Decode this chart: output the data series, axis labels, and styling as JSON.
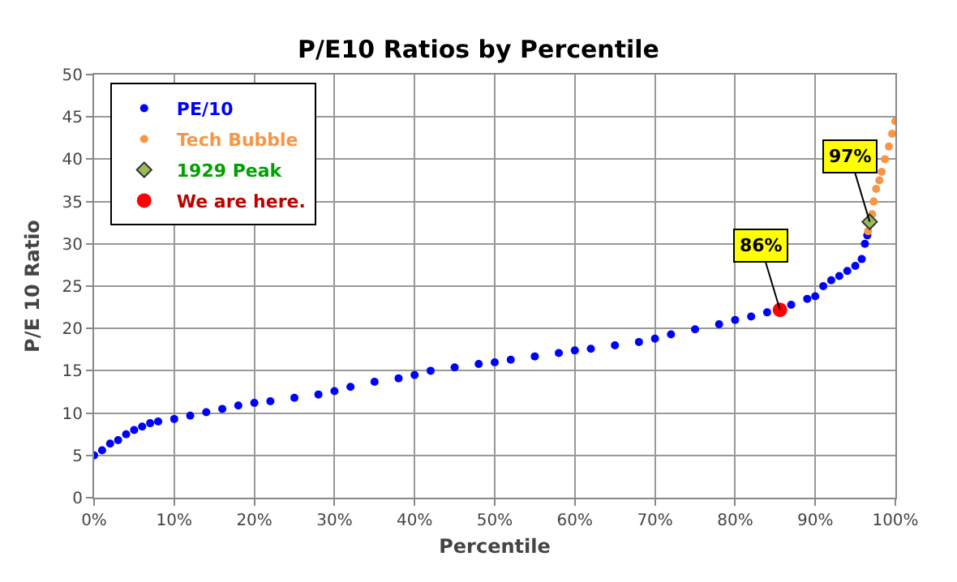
{
  "chart_data": {
    "type": "scatter",
    "title": "P/E10 Ratios by Percentile",
    "xlabel": "Percentile",
    "ylabel": "P/E 10 Ratio",
    "xlim": [
      0,
      100
    ],
    "ylim": [
      0,
      50
    ],
    "xticks": [
      {
        "value": 0,
        "label": "0%"
      },
      {
        "value": 10,
        "label": "10%"
      },
      {
        "value": 20,
        "label": "20%"
      },
      {
        "value": 30,
        "label": "30%"
      },
      {
        "value": 40,
        "label": "40%"
      },
      {
        "value": 50,
        "label": "50%"
      },
      {
        "value": 60,
        "label": "60%"
      },
      {
        "value": 70,
        "label": "70%"
      },
      {
        "value": 80,
        "label": "80%"
      },
      {
        "value": 90,
        "label": "90%"
      },
      {
        "value": 100,
        "label": "100%"
      }
    ],
    "yticks": [
      0,
      5,
      10,
      15,
      20,
      25,
      30,
      35,
      40,
      45,
      50
    ],
    "grid": true,
    "legend": "top left",
    "marker": "circle",
    "series": [
      {
        "name": "PE/10",
        "color": "#0000ff",
        "x": [
          0,
          1,
          2,
          3,
          4,
          5,
          6,
          7,
          8,
          10,
          12,
          14,
          16,
          18,
          20,
          22,
          25,
          28,
          30,
          32,
          35,
          38,
          40,
          42,
          45,
          48,
          50,
          52,
          55,
          58,
          60,
          62,
          65,
          68,
          70,
          72,
          75,
          78,
          80,
          82,
          84,
          87,
          89,
          90,
          91,
          92,
          93,
          94,
          95,
          95.8,
          96.2,
          96.5
        ],
        "values": [
          5.0,
          5.6,
          6.4,
          6.8,
          7.5,
          8.0,
          8.4,
          8.8,
          9.0,
          9.3,
          9.7,
          10.1,
          10.5,
          10.9,
          11.2,
          11.4,
          11.8,
          12.2,
          12.6,
          13.1,
          13.7,
          14.1,
          14.5,
          15.0,
          15.4,
          15.8,
          16.0,
          16.3,
          16.7,
          17.1,
          17.4,
          17.6,
          18.0,
          18.4,
          18.8,
          19.3,
          19.9,
          20.5,
          21.0,
          21.4,
          21.9,
          22.8,
          23.5,
          23.8,
          25.0,
          25.7,
          26.2,
          26.8,
          27.4,
          28.2,
          30.0,
          31.0
        ]
      },
      {
        "name": "Tech Bubble",
        "color": "#f79646",
        "x": [
          96.6,
          97.1,
          97.3,
          97.6,
          98.0,
          98.3,
          98.7,
          99.2,
          99.6,
          100
        ],
        "values": [
          31.5,
          33.5,
          35.0,
          36.5,
          37.5,
          38.5,
          40.0,
          41.5,
          43.0,
          44.5
        ]
      },
      {
        "name": "1929 Peak",
        "color": "#9bbb59",
        "marker": "diamond",
        "x": [
          96.8
        ],
        "values": [
          32.6
        ]
      },
      {
        "name": "We are here.",
        "color": "#ff0000",
        "x": [
          85.6
        ],
        "values": [
          22.2
        ]
      }
    ],
    "annotations": [
      {
        "text": "86%",
        "x": 85.6,
        "y": 22.2
      },
      {
        "text": "97%",
        "x": 96.8,
        "y": 32.6
      }
    ]
  }
}
